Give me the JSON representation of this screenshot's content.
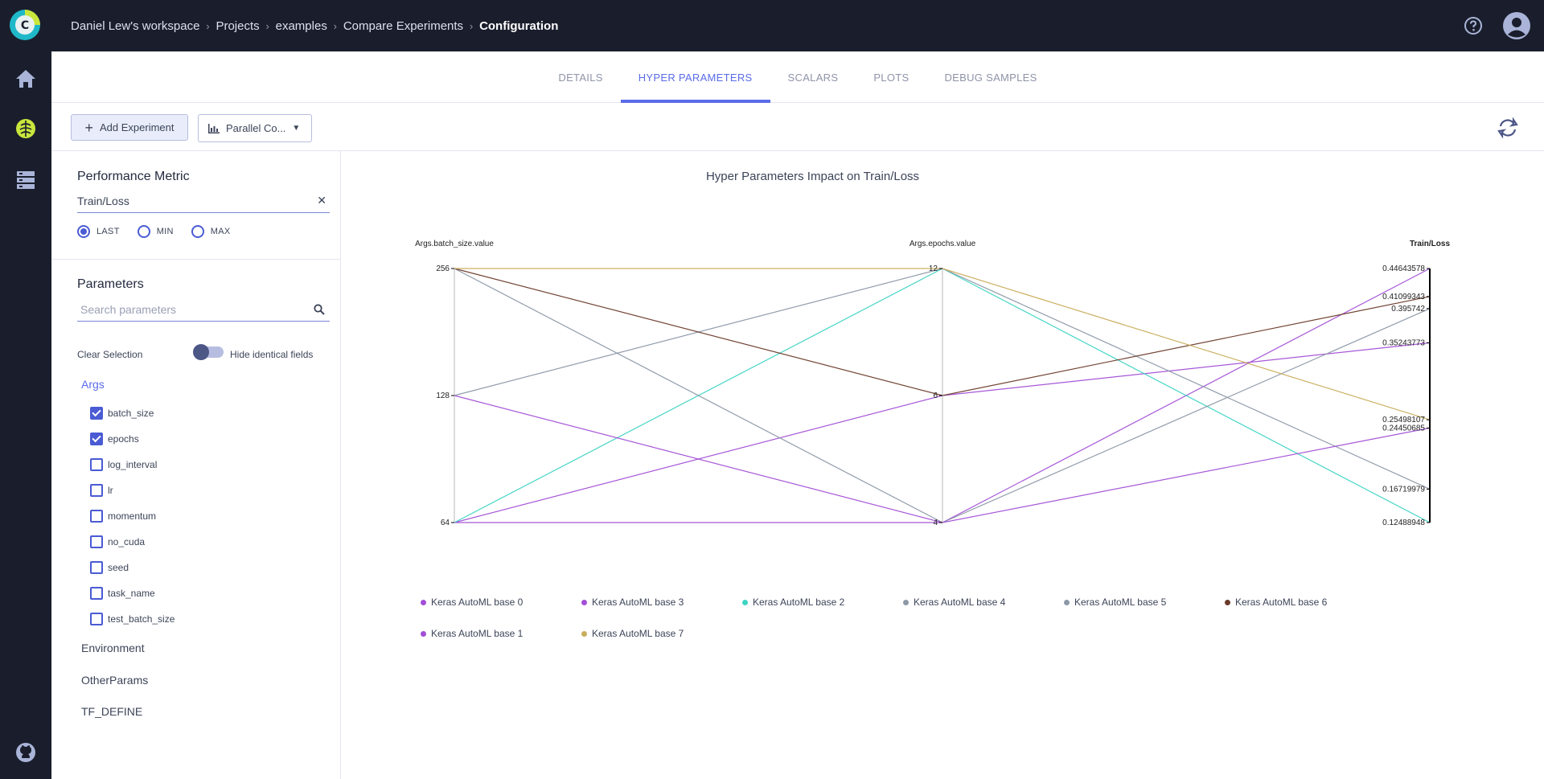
{
  "breadcrumbs": [
    "Daniel Lew's workspace",
    "Projects",
    "examples",
    "Compare Experiments",
    "Configuration"
  ],
  "tabs": [
    {
      "label": "DETAILS",
      "active": false
    },
    {
      "label": "HYPER PARAMETERS",
      "active": true
    },
    {
      "label": "SCALARS",
      "active": false
    },
    {
      "label": "PLOTS",
      "active": false
    },
    {
      "label": "DEBUG SAMPLES",
      "active": false
    }
  ],
  "toolbar": {
    "add_label": "Add Experiment",
    "view_label": "Parallel Co...",
    "view_icon": "bar-chart-icon",
    "refresh_icon": "refresh-icon"
  },
  "side": {
    "metric_title": "Performance Metric",
    "metric_value": "Train/Loss",
    "radios": [
      {
        "label": "LAST",
        "selected": true
      },
      {
        "label": "MIN",
        "selected": false
      },
      {
        "label": "MAX",
        "selected": false
      }
    ],
    "params_title": "Parameters",
    "search_placeholder": "Search parameters",
    "clear_label": "Clear Selection",
    "hide_label": "Hide identical fields",
    "groups": [
      "Args",
      "Environment",
      "OtherParams",
      "TF_DEFINE"
    ],
    "params": [
      {
        "label": "batch_size",
        "checked": true
      },
      {
        "label": "epochs",
        "checked": true
      },
      {
        "label": "log_interval",
        "checked": false
      },
      {
        "label": "lr",
        "checked": false
      },
      {
        "label": "momentum",
        "checked": false
      },
      {
        "label": "no_cuda",
        "checked": false
      },
      {
        "label": "seed",
        "checked": false
      },
      {
        "label": "task_name",
        "checked": false
      },
      {
        "label": "test_batch_size",
        "checked": false
      }
    ]
  },
  "chart_data": {
    "type": "parallel-coordinates",
    "title": "Hyper Parameters Impact on Train/Loss",
    "axes": [
      {
        "label": "Args.batch_size.value",
        "ticks": [
          "256",
          "128",
          "64"
        ],
        "range": [
          64,
          256
        ],
        "scale": "ordinal"
      },
      {
        "label": "Args.epochs.value",
        "ticks": [
          "12",
          "6",
          "4"
        ],
        "range": [
          4,
          12
        ],
        "scale": "ordinal"
      },
      {
        "label": "Train/Loss",
        "ticks": [
          "0.44643578",
          "0.41099343",
          "0.395742",
          "0.35243773",
          "0.25498107",
          "0.24450685",
          "0.16719979",
          "0.12488948"
        ],
        "range": [
          0.12488948,
          0.44643578
        ],
        "scale": "linear"
      }
    ],
    "series": [
      {
        "name": "Keras AutoML base 0",
        "color": "#a24fd6",
        "values": [
          64,
          4,
          0.44643578
        ]
      },
      {
        "name": "Keras AutoML base 3",
        "color": "#a24fd6",
        "values": [
          64,
          6,
          0.35243773
        ]
      },
      {
        "name": "Keras AutoML base 2",
        "color": "#3ed4c4",
        "values": [
          64,
          12,
          0.12488948
        ]
      },
      {
        "name": "Keras AutoML base 4",
        "color": "#8c98a6",
        "values": [
          128,
          12,
          0.16719979
        ]
      },
      {
        "name": "Keras AutoML base 5",
        "color": "#8c98a6",
        "values": [
          256,
          4,
          0.395742
        ]
      },
      {
        "name": "Keras AutoML base 6",
        "color": "#6b3a2a",
        "values": [
          256,
          6,
          0.41099343
        ]
      },
      {
        "name": "Keras AutoML base 1",
        "color": "#a24fd6",
        "values": [
          128,
          4,
          0.24450685
        ]
      },
      {
        "name": "Keras AutoML base 7",
        "color": "#c9ad5c",
        "values": [
          256,
          12,
          0.25498107
        ]
      }
    ]
  }
}
